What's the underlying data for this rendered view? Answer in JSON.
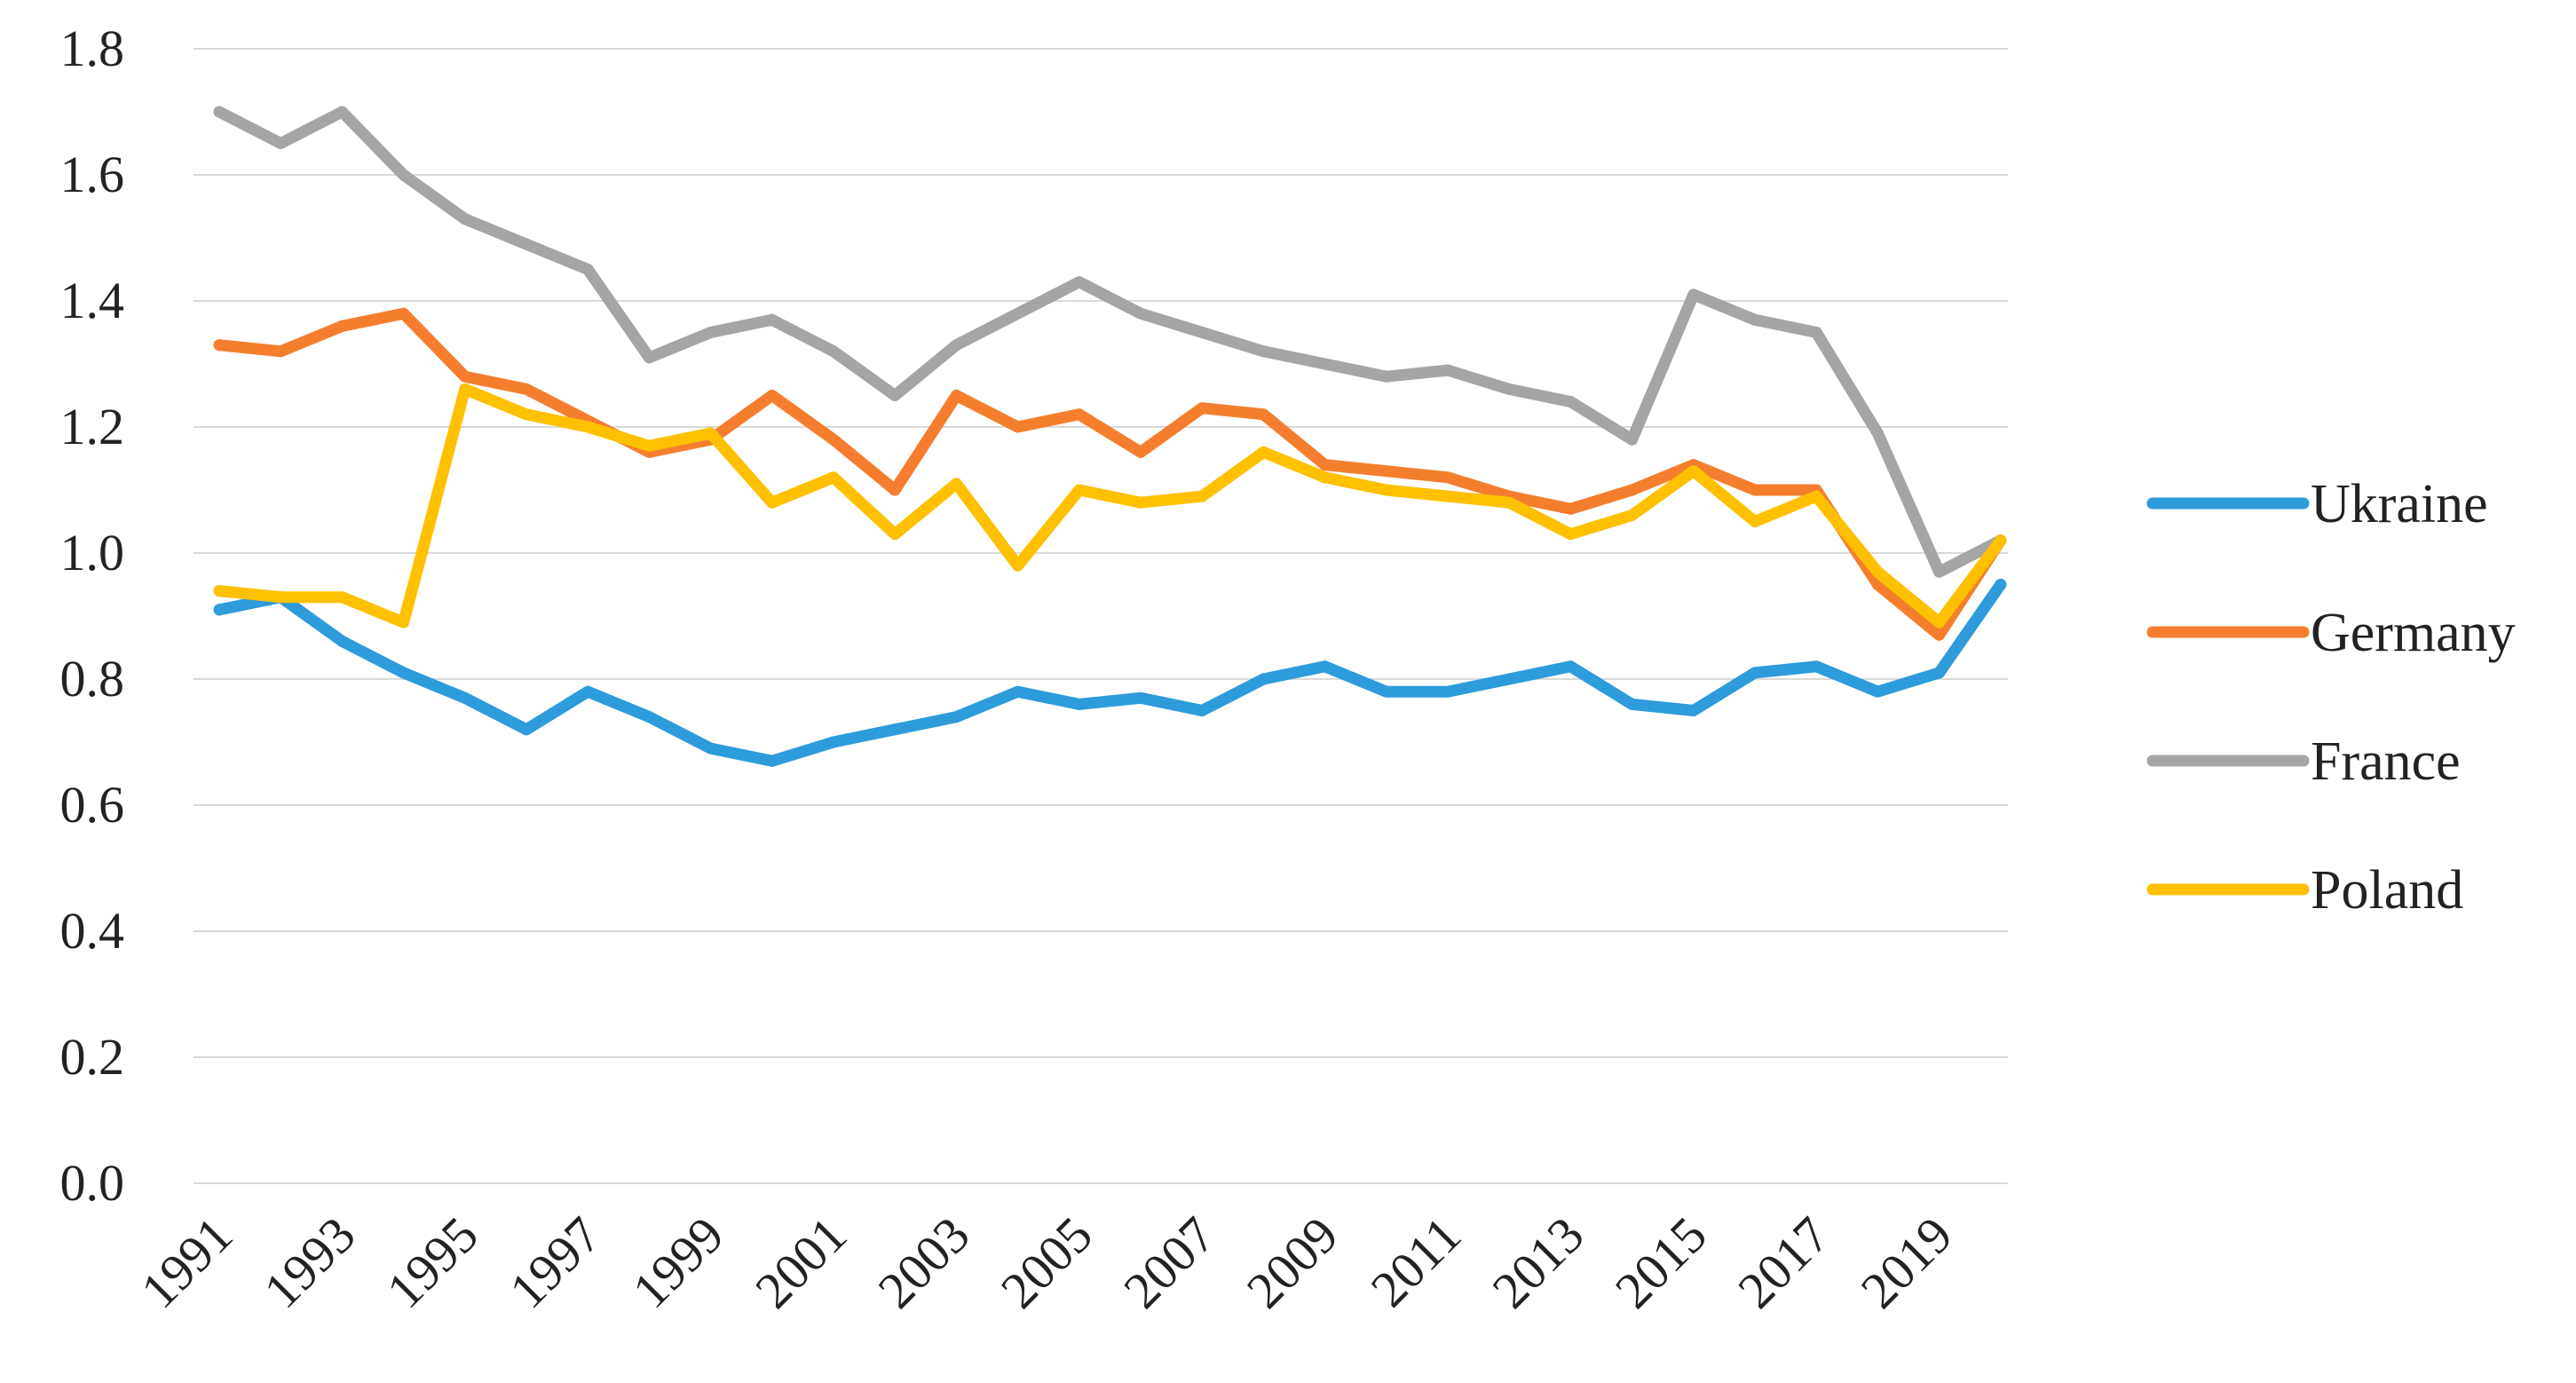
{
  "chart_data": {
    "type": "line",
    "title": "",
    "xlabel": "",
    "ylabel": "",
    "x": [
      1991,
      1992,
      1993,
      1994,
      1995,
      1996,
      1997,
      1998,
      1999,
      2000,
      2001,
      2002,
      2003,
      2004,
      2005,
      2006,
      2007,
      2008,
      2009,
      2010,
      2011,
      2012,
      2013,
      2014,
      2015,
      2016,
      2017,
      2018,
      2019,
      2020
    ],
    "x_tick_labels": [
      "1991",
      "1993",
      "1995",
      "1997",
      "1999",
      "2001",
      "2003",
      "2005",
      "2007",
      "2009",
      "2011",
      "2013",
      "2015",
      "2017",
      "2019"
    ],
    "ylim": [
      0.0,
      1.8
    ],
    "y_tick_labels": [
      "0.0",
      "0.2",
      "0.4",
      "0.6",
      "0.8",
      "1.0",
      "1.2",
      "1.4",
      "1.6",
      "1.8"
    ],
    "grid": true,
    "legend_position": "right",
    "series": [
      {
        "name": "Ukraine",
        "color": "#2E9BDB",
        "values": [
          0.91,
          0.93,
          0.86,
          0.81,
          0.77,
          0.72,
          0.78,
          0.74,
          0.69,
          0.67,
          0.7,
          0.72,
          0.74,
          0.78,
          0.76,
          0.77,
          0.75,
          0.8,
          0.82,
          0.78,
          0.78,
          0.8,
          0.82,
          0.76,
          0.75,
          0.81,
          0.82,
          0.78,
          0.81,
          0.95
        ]
      },
      {
        "name": "Germany",
        "color": "#F57E2E",
        "values": [
          1.33,
          1.32,
          1.36,
          1.38,
          1.28,
          1.26,
          1.21,
          1.16,
          1.18,
          1.25,
          1.18,
          1.1,
          1.25,
          1.2,
          1.22,
          1.16,
          1.23,
          1.22,
          1.14,
          1.13,
          1.12,
          1.09,
          1.07,
          1.1,
          1.14,
          1.1,
          1.1,
          0.95,
          0.87,
          1.02
        ]
      },
      {
        "name": "France",
        "color": "#A5A5A5",
        "values": [
          1.7,
          1.65,
          1.7,
          1.6,
          1.53,
          1.49,
          1.45,
          1.31,
          1.35,
          1.37,
          1.32,
          1.25,
          1.33,
          1.38,
          1.43,
          1.38,
          1.35,
          1.32,
          1.3,
          1.28,
          1.29,
          1.26,
          1.24,
          1.18,
          1.41,
          1.37,
          1.35,
          1.19,
          0.97,
          1.02
        ]
      },
      {
        "name": "Poland",
        "color": "#FFC000",
        "values": [
          0.94,
          0.93,
          0.93,
          0.89,
          1.26,
          1.22,
          1.2,
          1.17,
          1.19,
          1.08,
          1.12,
          1.03,
          1.11,
          0.98,
          1.1,
          1.08,
          1.09,
          1.16,
          1.12,
          1.1,
          1.09,
          1.08,
          1.03,
          1.06,
          1.13,
          1.05,
          1.09,
          0.97,
          0.89,
          1.02
        ]
      }
    ]
  },
  "style": {
    "grid_color": "#D9D9D9",
    "axis_color": "#D9D9D9",
    "text_color": "#222222"
  }
}
